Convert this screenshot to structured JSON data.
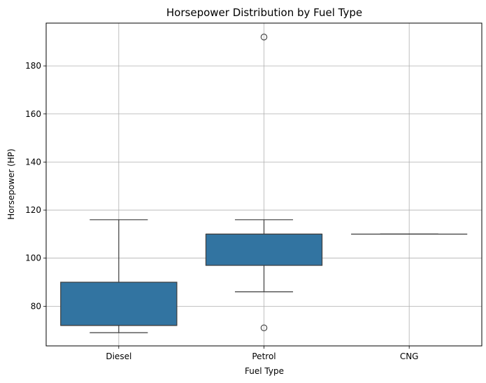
{
  "chart_data": {
    "type": "box",
    "title": "Horsepower Distribution by Fuel Type",
    "xlabel": "Fuel Type",
    "ylabel": "Horsepower (HP)",
    "ylim": [
      63.5,
      197.8
    ],
    "yticks": [
      80,
      100,
      120,
      140,
      160,
      180
    ],
    "grid": true,
    "box_color": "#3274a1",
    "line_color": "#3d3d3d",
    "categories": [
      "Diesel",
      "Petrol",
      "CNG"
    ],
    "series": [
      {
        "category": "Diesel",
        "whisker_low": 69,
        "q1": 72,
        "median": 72,
        "q3": 90,
        "whisker_high": 116,
        "outliers": []
      },
      {
        "category": "Petrol",
        "whisker_low": 86,
        "q1": 97,
        "median": 110,
        "q3": 110,
        "whisker_high": 116,
        "outliers": [
          71,
          192
        ]
      },
      {
        "category": "CNG",
        "whisker_low": 110,
        "q1": 110,
        "median": 110,
        "q3": 110,
        "whisker_high": 110,
        "outliers": []
      }
    ]
  }
}
